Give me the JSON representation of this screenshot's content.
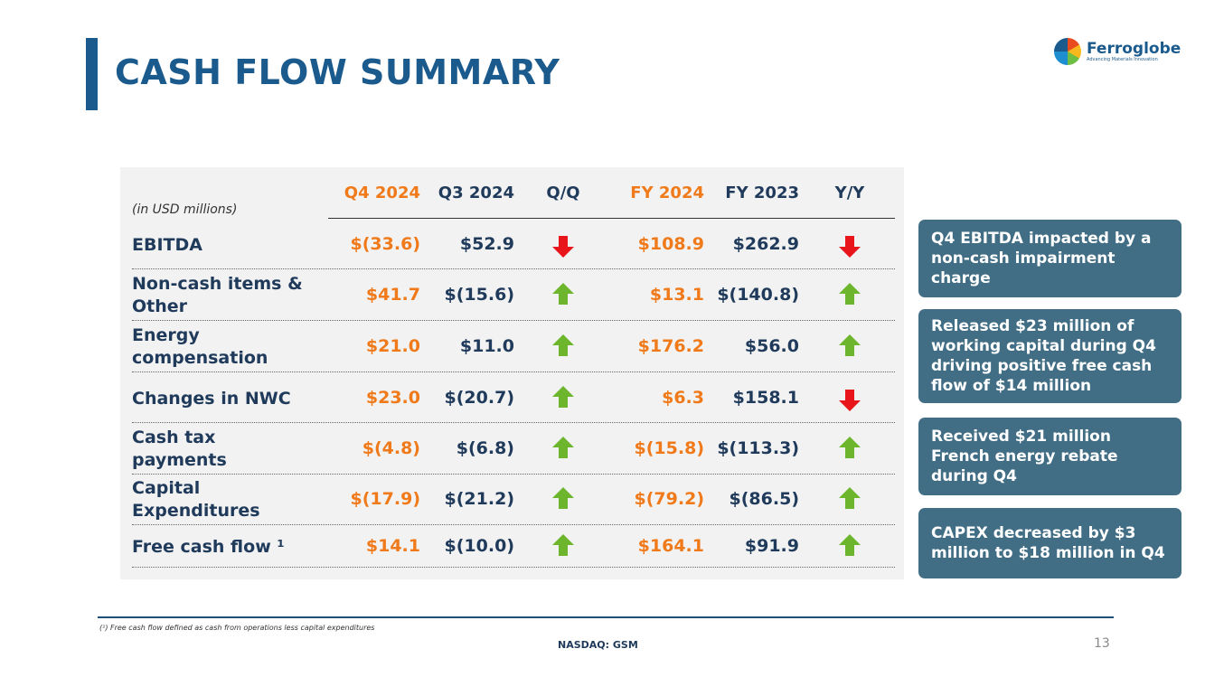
{
  "title": "CASH FLOW SUMMARY",
  "logo": {
    "name": "Ferroglobe",
    "tagline": "Advancing Materials Innovation"
  },
  "table": {
    "unit_note": "(in USD millions)",
    "headers": [
      "Q4 2024",
      "Q3 2024",
      "Q/Q",
      "FY 2024",
      "FY 2023",
      "Y/Y"
    ],
    "rows": [
      {
        "label": "EBITDA",
        "q4_2024": "$(33.6)",
        "q3_2024": "$52.9",
        "qq": "down",
        "fy2024": "$108.9",
        "fy2023": "$262.9",
        "yy": "down"
      },
      {
        "label": "Non-cash items & Other",
        "q4_2024": "$41.7",
        "q3_2024": "$(15.6)",
        "qq": "up",
        "fy2024": "$13.1",
        "fy2023": "$(140.8)",
        "yy": "up"
      },
      {
        "label": "Energy compensation",
        "q4_2024": "$21.0",
        "q3_2024": "$11.0",
        "qq": "up",
        "fy2024": "$176.2",
        "fy2023": "$56.0",
        "yy": "up"
      },
      {
        "label": "Changes in NWC",
        "q4_2024": "$23.0",
        "q3_2024": "$(20.7)",
        "qq": "up",
        "fy2024": "$6.3",
        "fy2023": "$158.1",
        "yy": "down"
      },
      {
        "label": "Cash tax payments",
        "q4_2024": "$(4.8)",
        "q3_2024": "$(6.8)",
        "qq": "up",
        "fy2024": "$(15.8)",
        "fy2023": "$(113.3)",
        "yy": "up"
      },
      {
        "label": "Capital Expenditures",
        "q4_2024": "$(17.9)",
        "q3_2024": "$(21.2)",
        "qq": "up",
        "fy2024": "$(79.2)",
        "fy2023": "$(86.5)",
        "yy": "up"
      },
      {
        "label": "Free cash flow ¹",
        "q4_2024": "$14.1",
        "q3_2024": "$(10.0)",
        "qq": "up",
        "fy2024": "$164.1",
        "fy2023": "$91.9",
        "yy": "up"
      }
    ]
  },
  "callouts": [
    "Q4 EBITDA impacted by a non-cash impairment charge",
    "Released $23 million of working capital during Q4 driving positive free cash flow of $14 million",
    "Received $21 million French energy rebate during Q4",
    "CAPEX decreased by $3 million to $18 million in Q4"
  ],
  "footnote": "(¹) Free cash flow defined as cash from operations less capital expenditures",
  "footer": {
    "ticker": "NASDAQ: GSM",
    "page": "13"
  },
  "colors": {
    "brand": "#1b5a8c",
    "highlight": "#f07a1a",
    "up": "#6cb52d",
    "down": "#e8151b",
    "callout": "#416e85"
  }
}
